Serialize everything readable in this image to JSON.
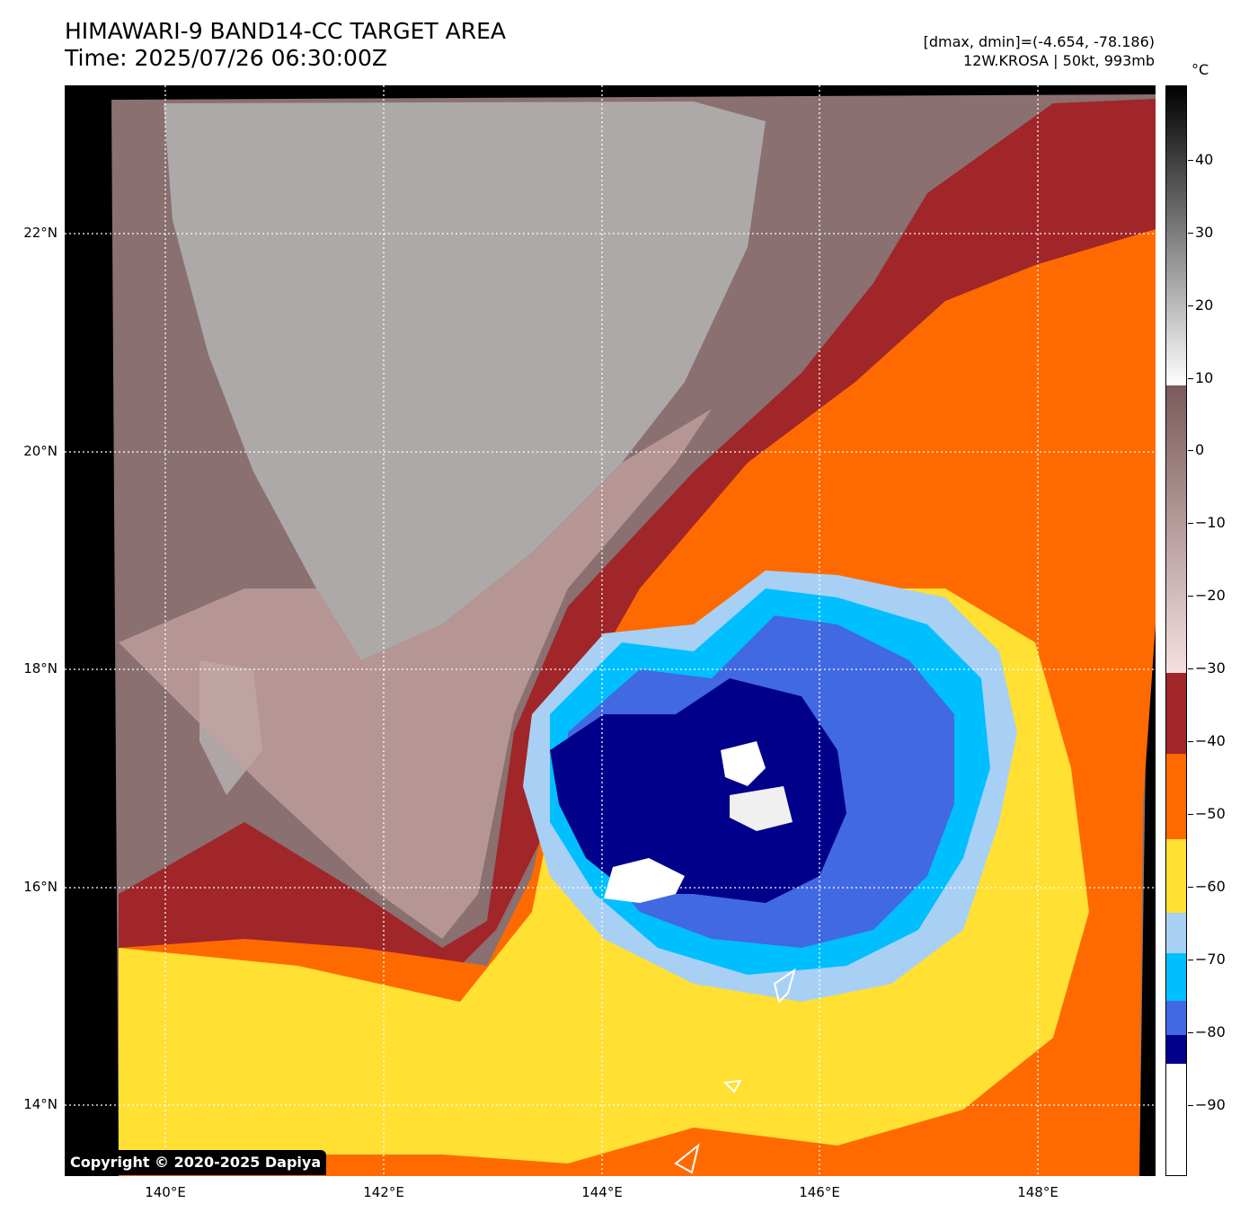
{
  "header": {
    "title_line1": "HIMAWARI-9 BAND14-CC TARGET AREA",
    "title_line2": "Time: 2025/07/26 06:30:00Z",
    "range_text": "[dmax, dmin]=(-4.654, -78.186)",
    "storm_text": "12W.KROSA | 50kt, 993mb"
  },
  "map": {
    "lat_labels": [
      "22°N",
      "20°N",
      "18°N",
      "16°N",
      "14°N"
    ],
    "lon_labels": [
      "140°E",
      "142°E",
      "144°E",
      "146°E",
      "148°E"
    ]
  },
  "copyright": "Copyright © 2020-2025 Dapiya",
  "colorbar": {
    "unit": "°C",
    "labels": [
      "40",
      "30",
      "20",
      "10",
      "0",
      "−10",
      "−20",
      "−30",
      "−40",
      "−50",
      "−60",
      "−70",
      "−80",
      "−90"
    ],
    "colors": {
      "warm_gray_top": "#000000",
      "warm_gray_bottom": "#ffffff",
      "brown_top": "#7a5a5a",
      "brown_bottom": "#f5e0e0",
      "dark_red": "#a0262a",
      "orange": "#ff6a00",
      "yellow": "#ffe033",
      "light_blue": "#a8d0f5",
      "cyan": "#00bfff",
      "royal_blue": "#4169e1",
      "navy": "#00008b",
      "white": "#ffffff"
    }
  }
}
